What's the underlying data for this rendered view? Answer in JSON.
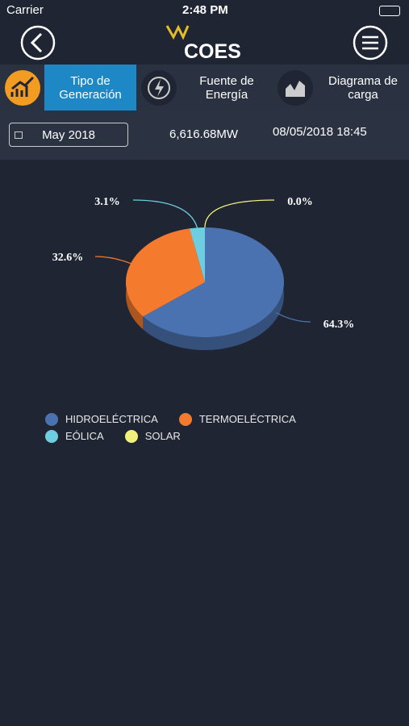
{
  "status_bar": {
    "carrier": "Carrier",
    "time": "2:48 PM"
  },
  "header": {
    "logo": "COES"
  },
  "tabs": [
    "Tipo de Generación",
    "Fuente de Energía",
    "Diagrama de carga"
  ],
  "info_bar": {
    "month": "May 2018",
    "power": "6,616.68MW",
    "datetime": "08/05/2018 18:45"
  },
  "chart_data": {
    "type": "pie",
    "categories": [
      "HIDROELÉCTRICA",
      "TERMOELÉCTRICA",
      "EÓLICA",
      "SOLAR"
    ],
    "values": [
      64.3,
      32.6,
      3.1,
      0.0
    ],
    "value_labels": [
      "64.3%",
      "32.6%",
      "3.1%",
      "0.0%"
    ],
    "colors": [
      "#4a72b0",
      "#f47a2e",
      "#6fcde0",
      "#f2f27a"
    ]
  }
}
